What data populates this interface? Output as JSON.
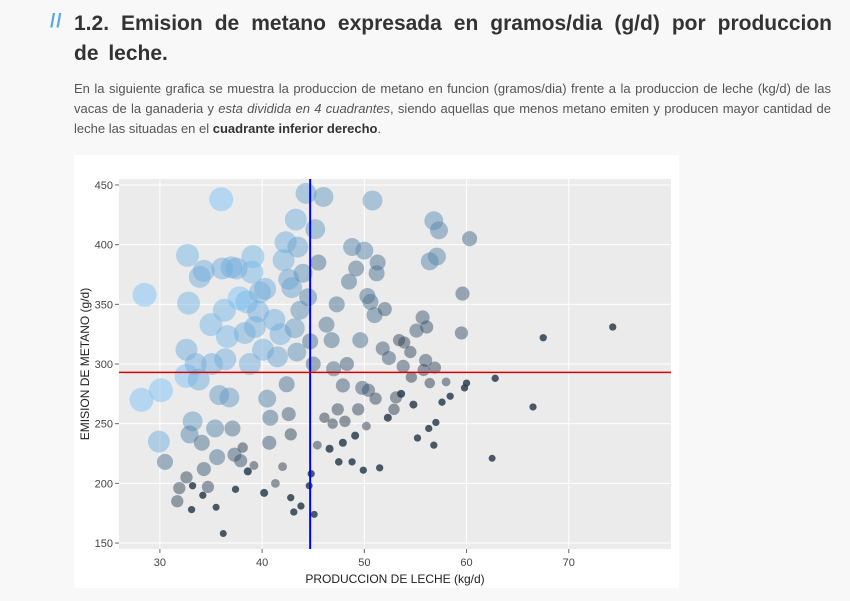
{
  "section": {
    "marker": "//",
    "title": "1.2. Emision de metano expresada en gramos/dia (g/d) por produccion de leche.",
    "intro_part1": "En la siguiente grafica se muestra la produccion de metano en funcion (gramos/dia) frente a la produccion de leche (kg/d) de las vacas de la ganaderia y ",
    "intro_em": "esta dividida en 4 cuadrantes",
    "intro_part2": ", siendo aquellas que menos metano emiten y producen mayor cantidad de leche las situadas en el ",
    "intro_strong": "cuadrante inferior derecho",
    "intro_end": "."
  },
  "chart_data": {
    "type": "scatter",
    "xlabel": "PRODUCCION DE LECHE (kg/d)",
    "ylabel": "EMISION DE METANO (g/d)",
    "xlim": [
      26,
      80
    ],
    "ylim": [
      145,
      455
    ],
    "xticks": [
      30,
      40,
      50,
      60,
      70
    ],
    "yticks": [
      150,
      200,
      250,
      300,
      350,
      400,
      450
    ],
    "grid": true,
    "legend": "none",
    "colors": {
      "low": "#2c3e50",
      "high": "#7ec2f5",
      "plot_bg": "#ebebeb",
      "grid": "#ffffff",
      "vline": "#0000ff",
      "hline": "#dd0000"
    },
    "reference_lines": {
      "vertical_x": 44.7,
      "horizontal_y": 293
    },
    "points": [
      [
        28.5,
        358,
        1
      ],
      [
        28.2,
        270,
        1
      ],
      [
        30.1,
        278,
        1
      ],
      [
        29.9,
        235,
        0.9
      ],
      [
        30.5,
        218,
        0.6
      ],
      [
        31.7,
        185,
        0.4
      ],
      [
        31.9,
        196,
        0.4
      ],
      [
        32.6,
        205,
        0.4
      ],
      [
        32.6,
        290,
        1
      ],
      [
        32.6,
        312,
        0.9
      ],
      [
        32.8,
        351,
        0.95
      ],
      [
        32.7,
        391,
        0.95
      ],
      [
        32.9,
        241,
        0.7
      ],
      [
        33.2,
        252,
        0.8
      ],
      [
        33.5,
        300,
        0.9
      ],
      [
        33.9,
        373,
        0.9
      ],
      [
        34.3,
        378,
        0.9
      ],
      [
        33.8,
        287,
        0.9
      ],
      [
        34.1,
        234,
        0.6
      ],
      [
        34.3,
        212,
        0.5
      ],
      [
        34.7,
        197,
        0.4
      ],
      [
        35.0,
        333,
        0.95
      ],
      [
        35.1,
        300,
        0.9
      ],
      [
        35.4,
        246,
        0.7
      ],
      [
        35.6,
        222,
        0.6
      ],
      [
        35.8,
        274,
        0.8
      ],
      [
        36.0,
        438,
        1
      ],
      [
        36.1,
        380,
        0.9
      ],
      [
        36.3,
        345,
        0.95
      ],
      [
        36.6,
        323,
        0.95
      ],
      [
        36.4,
        304,
        0.9
      ],
      [
        36.8,
        272,
        0.8
      ],
      [
        37.0,
        381,
        0.9
      ],
      [
        37.5,
        380,
        0.9
      ],
      [
        37.8,
        355,
        1
      ],
      [
        37.1,
        246,
        0.6
      ],
      [
        37.3,
        224,
        0.5
      ],
      [
        37.9,
        219,
        0.45
      ],
      [
        38.3,
        326,
        0.9
      ],
      [
        38.8,
        300,
        0.9
      ],
      [
        38.5,
        352,
        0.95
      ],
      [
        39.0,
        377,
        0.95
      ],
      [
        39.1,
        390,
        0.95
      ],
      [
        39.3,
        331,
        0.9
      ],
      [
        39.6,
        344,
        0.9
      ],
      [
        39.8,
        360,
        0.9
      ],
      [
        40.3,
        363,
        0.9
      ],
      [
        40.1,
        312,
        0.9
      ],
      [
        40.5,
        271,
        0.7
      ],
      [
        40.8,
        255,
        0.6
      ],
      [
        40.7,
        234,
        0.5
      ],
      [
        41.2,
        337,
        0.9
      ],
      [
        41.5,
        306,
        0.85
      ],
      [
        41.8,
        325,
        0.9
      ],
      [
        42.1,
        387,
        0.9
      ],
      [
        42.3,
        402,
        0.9
      ],
      [
        42.6,
        371,
        0.85
      ],
      [
        42.9,
        364,
        0.85
      ],
      [
        42.4,
        283,
        0.6
      ],
      [
        42.6,
        258,
        0.5
      ],
      [
        42.8,
        241,
        0.4
      ],
      [
        43.2,
        330,
        0.8
      ],
      [
        43.4,
        310,
        0.75
      ],
      [
        43.3,
        421,
        0.9
      ],
      [
        43.5,
        398,
        0.85
      ],
      [
        43.7,
        345,
        0.75
      ],
      [
        44.0,
        376,
        0.75
      ],
      [
        44.3,
        443,
        0.85
      ],
      [
        44.5,
        356,
        0.7
      ],
      [
        44.7,
        319,
        0.6
      ],
      [
        45.0,
        300,
        0.55
      ],
      [
        45.2,
        413,
        0.8
      ],
      [
        45.5,
        385,
        0.6
      ],
      [
        46.0,
        440,
        0.8
      ],
      [
        46.3,
        333,
        0.6
      ],
      [
        46.8,
        320,
        0.6
      ],
      [
        47.0,
        296,
        0.55
      ],
      [
        47.3,
        350,
        0.6
      ],
      [
        47.9,
        282,
        0.5
      ],
      [
        48.3,
        300,
        0.5
      ],
      [
        48.5,
        369,
        0.6
      ],
      [
        48.8,
        398,
        0.7
      ],
      [
        49.2,
        380,
        0.6
      ],
      [
        49.6,
        320,
        0.6
      ],
      [
        49.8,
        280,
        0.5
      ],
      [
        50.3,
        357,
        0.6
      ],
      [
        50.0,
        395,
        0.7
      ],
      [
        50.6,
        352,
        0.6
      ],
      [
        50.8,
        437,
        0.8
      ],
      [
        51.0,
        341,
        0.6
      ],
      [
        51.3,
        385,
        0.6
      ],
      [
        51.2,
        376,
        0.6
      ],
      [
        51.8,
        313,
        0.5
      ],
      [
        52.0,
        346,
        0.5
      ],
      [
        52.4,
        305,
        0.5
      ],
      [
        53.4,
        320,
        0.4
      ],
      [
        53.9,
        318,
        0.4
      ],
      [
        54.5,
        310,
        0.4
      ],
      [
        55.1,
        328,
        0.5
      ],
      [
        55.7,
        339,
        0.5
      ],
      [
        56.0,
        303,
        0.45
      ],
      [
        56.1,
        331,
        0.45
      ],
      [
        56.4,
        386,
        0.7
      ],
      [
        56.8,
        420,
        0.75
      ],
      [
        57.1,
        390,
        0.7
      ],
      [
        57.3,
        412,
        0.7
      ],
      [
        56.9,
        297,
        0.4
      ],
      [
        59.5,
        326,
        0.45
      ],
      [
        59.6,
        359,
        0.5
      ],
      [
        60.3,
        405,
        0.55
      ],
      [
        44.8,
        208,
        0.1
      ],
      [
        44.6,
        198,
        0.08
      ],
      [
        45.1,
        174,
        0.08
      ],
      [
        46.6,
        229,
        0.15
      ],
      [
        47.5,
        218,
        0.12
      ],
      [
        48.8,
        218,
        0.1
      ],
      [
        49.1,
        240,
        0.15
      ],
      [
        49.9,
        211,
        0.1
      ],
      [
        51.5,
        213,
        0.1
      ],
      [
        52.3,
        255,
        0.15
      ],
      [
        53.6,
        275,
        0.15
      ],
      [
        54.8,
        266,
        0.15
      ],
      [
        55.2,
        238,
        0.1
      ],
      [
        56.3,
        246,
        0.1
      ],
      [
        56.8,
        232,
        0.1
      ],
      [
        57.0,
        251,
        0.1
      ],
      [
        57.6,
        268,
        0.1
      ],
      [
        58.4,
        273,
        0.1
      ],
      [
        59.8,
        280,
        0.1
      ],
      [
        60.0,
        284,
        0.1
      ],
      [
        62.5,
        221,
        0.08
      ],
      [
        62.8,
        288,
        0.1
      ],
      [
        66.5,
        264,
        0.1
      ],
      [
        67.5,
        322,
        0.1
      ],
      [
        74.3,
        331,
        0.1
      ],
      [
        35.5,
        180,
        0.08
      ],
      [
        36.2,
        158,
        0.08
      ],
      [
        37.4,
        195,
        0.1
      ],
      [
        38.1,
        230,
        0.3
      ],
      [
        39.2,
        215,
        0.2
      ],
      [
        40.2,
        192,
        0.15
      ],
      [
        41.3,
        200,
        0.2
      ],
      [
        42.0,
        214,
        0.2
      ],
      [
        42.8,
        188,
        0.1
      ],
      [
        43.1,
        176,
        0.1
      ],
      [
        43.8,
        181,
        0.1
      ],
      [
        47.4,
        262,
        0.4
      ],
      [
        48.1,
        252,
        0.35
      ],
      [
        49.4,
        262,
        0.4
      ],
      [
        50.4,
        278,
        0.45
      ],
      [
        51.1,
        271,
        0.4
      ],
      [
        52.9,
        262,
        0.35
      ],
      [
        53.1,
        272,
        0.4
      ],
      [
        34.2,
        190,
        0.1
      ],
      [
        33.2,
        198,
        0.1
      ],
      [
        33.1,
        178,
        0.1
      ],
      [
        38.6,
        210,
        0.15
      ],
      [
        46.1,
        255,
        0.3
      ],
      [
        45.4,
        232,
        0.2
      ],
      [
        46.9,
        250,
        0.3
      ],
      [
        47.9,
        234,
        0.15
      ],
      [
        50.2,
        248,
        0.2
      ],
      [
        54.6,
        289,
        0.35
      ],
      [
        55.8,
        295,
        0.4
      ],
      [
        53.8,
        298,
        0.45
      ],
      [
        58.0,
        285,
        0.2
      ],
      [
        56.4,
        284,
        0.3
      ]
    ]
  }
}
